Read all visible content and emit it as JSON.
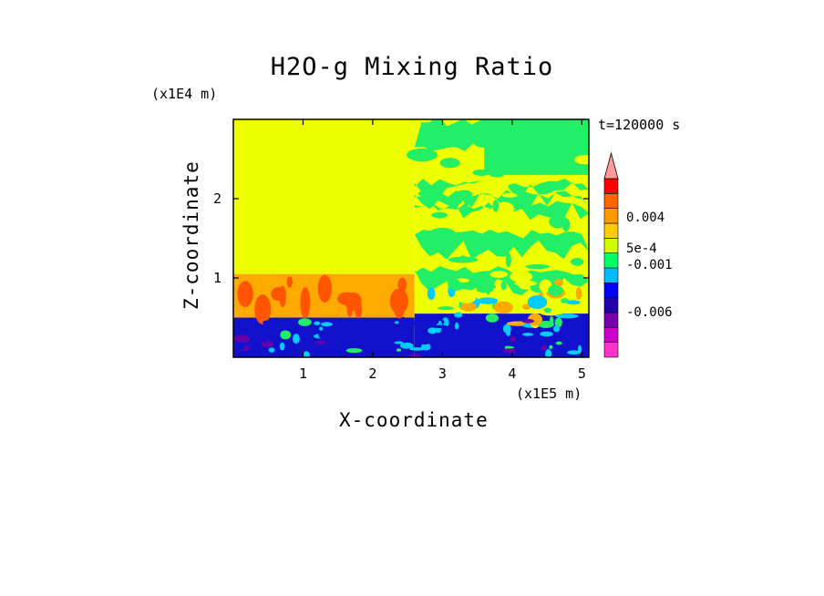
{
  "figure": {
    "title": "H2O-g Mixing Ratio",
    "time_label": "t=120000 s"
  },
  "chart_data": {
    "type": "heatmap",
    "title": "H2O-g Mixing Ratio",
    "xlabel": "X-coordinate",
    "ylabel": "Z-coordinate",
    "x_multiplier": "(x1E5 m)",
    "y_multiplier": "(x1E4 m)",
    "x_ticks": [
      1,
      2,
      3,
      4,
      5
    ],
    "y_ticks": [
      1,
      2
    ],
    "xlim": [
      0,
      5.1
    ],
    "ylim": [
      0,
      3.0
    ],
    "time": "t=120000 s",
    "colorbar": {
      "tick_labels": [
        "0.004",
        "5e-4",
        "-0.001",
        "-0.006"
      ],
      "tick_values": [
        0.004,
        0.0005,
        -0.001,
        -0.006
      ],
      "extend": "max",
      "colors": [
        "#ff33cc",
        "#cc00cc",
        "#7700aa",
        "#2200aa",
        "#0000ff",
        "#00bbff",
        "#00ff66",
        "#ccff00",
        "#ffcc00",
        "#ff9900",
        "#ff6600",
        "#ff0000",
        "#ff9999"
      ]
    },
    "regions": [
      {
        "x": [
          0,
          2.6
        ],
        "z": [
          0.5,
          1.05
        ],
        "level": "orange"
      },
      {
        "x": [
          0,
          2.6
        ],
        "z": [
          0,
          0.5
        ],
        "level": "blue"
      },
      {
        "x": [
          0,
          2.6
        ],
        "z": [
          1.05,
          3.0
        ],
        "level": "yellow"
      },
      {
        "x": [
          2.6,
          5.1
        ],
        "z": [
          0,
          0.6
        ],
        "level": "blue"
      },
      {
        "x": [
          2.6,
          5.1
        ],
        "z": [
          0.6,
          3.0
        ],
        "level": "green-yellow"
      }
    ]
  },
  "colors": {
    "yellow": "#eeff00",
    "green": "#22ee66",
    "orange": "#ffaa00",
    "deep_orange": "#ff5500",
    "blue": "#1111cc",
    "cyan": "#00ccff",
    "purple": "#6600aa"
  }
}
